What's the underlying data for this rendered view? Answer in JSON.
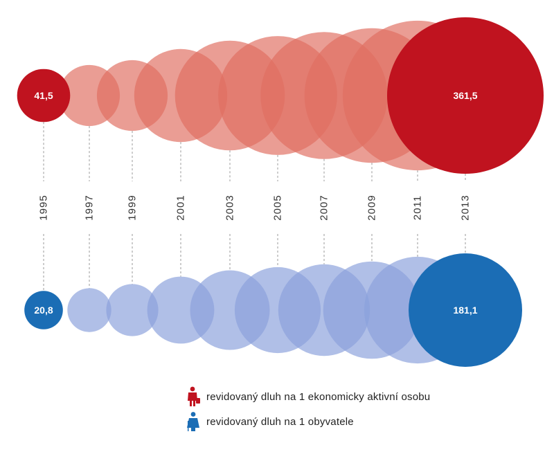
{
  "chart_data": {
    "type": "bubble",
    "categories": [
      "1995",
      "1997",
      "1999",
      "2001",
      "2003",
      "2005",
      "2007",
      "2009",
      "2011",
      "2013"
    ],
    "series": [
      {
        "name": "revidovaný dluh na 1 ekonomicky aktivní osobu",
        "values": [
          41.5,
          55,
          74,
          128,
          178,
          209,
          238,
          268,
          331,
          361.5
        ],
        "labels": [
          "41,5",
          "",
          "",
          "",
          "",
          "",
          "",
          "",
          "",
          "361,5"
        ],
        "highlight_color": "#c0131f",
        "faded_color": "#e06f62"
      },
      {
        "name": "revidovaný dluh na 1 obyvatele",
        "values": [
          20.8,
          27,
          38,
          63,
          89,
          104,
          118,
          133,
          160,
          181.1
        ],
        "labels": [
          "20,8",
          "",
          "",
          "",
          "",
          "",
          "",
          "",
          "",
          "181,1"
        ],
        "highlight_color": "#1b6db5",
        "faded_color": "#8aa0dc"
      }
    ],
    "title": "",
    "xlabel": "",
    "ylabel": "",
    "grid": false,
    "legend_position": "bottom"
  }
}
